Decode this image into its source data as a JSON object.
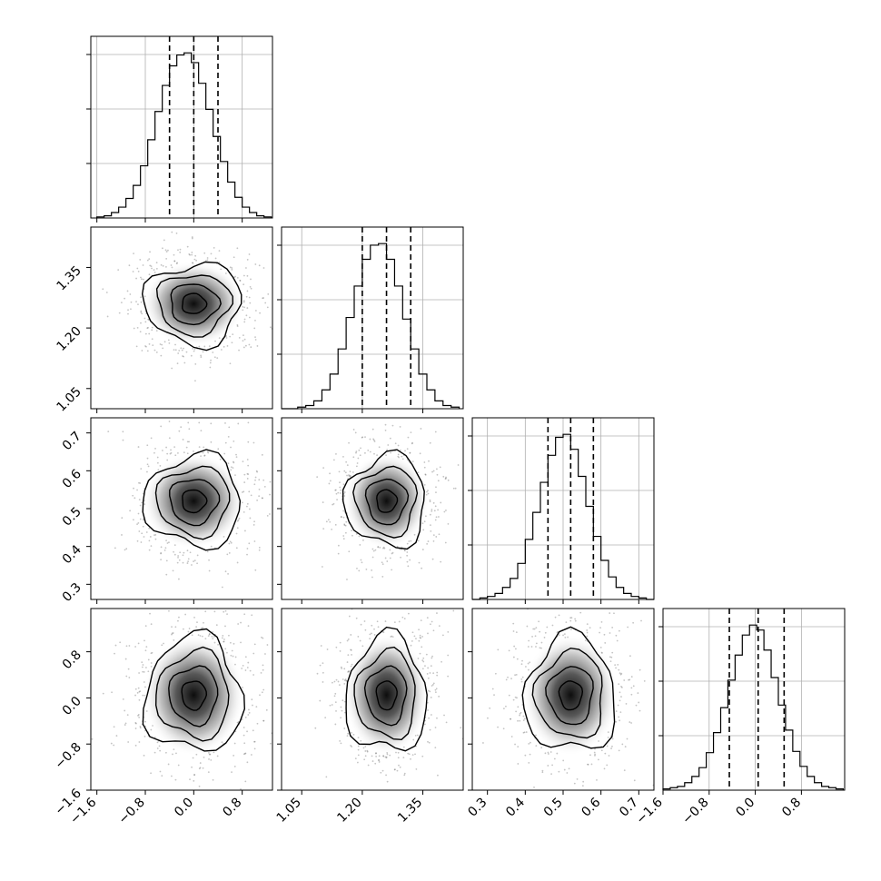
{
  "chart_data": {
    "type": "corner",
    "title": "",
    "grid": true,
    "parameters": [
      {
        "name": "",
        "range": [
          -1.7,
          1.3
        ],
        "ticks": [
          -1.6,
          -0.8,
          0.0,
          0.8
        ],
        "tick_labels": [
          "−1.6",
          "−0.8",
          "0.0",
          "0.8"
        ],
        "hist_edges": [
          -1.6,
          -1.48,
          -1.36,
          -1.24,
          -1.12,
          -1.0,
          -0.88,
          -0.76,
          -0.64,
          -0.52,
          -0.4,
          -0.28,
          -0.16,
          -0.04,
          0.08,
          0.2,
          0.32,
          0.44,
          0.56,
          0.68,
          0.8,
          0.92,
          1.04,
          1.16,
          1.28
        ],
        "hist_counts": [
          1,
          2,
          5,
          10,
          18,
          30,
          48,
          72,
          98,
          122,
          140,
          150,
          152,
          143,
          124,
          100,
          75,
          52,
          33,
          19,
          10,
          5,
          2,
          1
        ],
        "quantiles": [
          -0.4,
          0.0,
          0.4
        ]
      },
      {
        "name": "",
        "range": [
          1.0,
          1.45
        ],
        "ticks": [
          1.05,
          1.2,
          1.35
        ],
        "tick_labels": [
          "1.05",
          "1.20",
          "1.35"
        ],
        "hist_edges": [
          1.0,
          1.02,
          1.04,
          1.06,
          1.08,
          1.1,
          1.12,
          1.14,
          1.16,
          1.18,
          1.2,
          1.22,
          1.24,
          1.26,
          1.28,
          1.3,
          1.32,
          1.34,
          1.36,
          1.38,
          1.4,
          1.42,
          1.44
        ],
        "hist_counts": [
          0,
          0,
          1,
          2,
          5,
          12,
          22,
          38,
          58,
          78,
          95,
          104,
          105,
          95,
          78,
          57,
          38,
          22,
          12,
          5,
          2,
          1
        ],
        "quantiles": [
          1.2,
          1.26,
          1.32
        ]
      },
      {
        "name": "",
        "range": [
          0.26,
          0.74
        ],
        "ticks": [
          0.3,
          0.4,
          0.5,
          0.6,
          0.7
        ],
        "tick_labels": [
          "0.3",
          "0.4",
          "0.5",
          "0.6",
          "0.7"
        ],
        "hist_edges": [
          0.26,
          0.28,
          0.3,
          0.32,
          0.34,
          0.36,
          0.38,
          0.4,
          0.42,
          0.44,
          0.46,
          0.48,
          0.5,
          0.52,
          0.54,
          0.56,
          0.58,
          0.6,
          0.62,
          0.64,
          0.66,
          0.68,
          0.7,
          0.72,
          0.74
        ],
        "hist_counts": [
          0,
          1,
          2,
          4,
          8,
          14,
          24,
          40,
          58,
          78,
          96,
          108,
          110,
          100,
          82,
          62,
          42,
          26,
          15,
          8,
          4,
          2,
          1,
          0
        ],
        "quantiles": [
          0.46,
          0.52,
          0.58
        ]
      },
      {
        "name": "",
        "range": [
          -1.6,
          1.55
        ],
        "ticks": [
          -1.6,
          -0.8,
          0.0,
          0.8
        ],
        "tick_labels": [
          "−1.6",
          "−0.8",
          "0.0",
          "0.8"
        ],
        "hist_edges": [
          -1.6,
          -1.475,
          -1.35,
          -1.225,
          -1.1,
          -0.975,
          -0.85,
          -0.725,
          -0.6,
          -0.475,
          -0.35,
          -0.225,
          -0.1,
          0.025,
          0.15,
          0.275,
          0.4,
          0.525,
          0.65,
          0.775,
          0.9,
          1.025,
          1.15,
          1.275,
          1.4,
          1.525
        ],
        "hist_counts": [
          1,
          2,
          3,
          6,
          11,
          18,
          30,
          46,
          66,
          88,
          108,
          124,
          132,
          128,
          112,
          90,
          68,
          48,
          31,
          19,
          11,
          6,
          3,
          2,
          1
        ],
        "quantiles": [
          -0.45,
          0.05,
          0.5
        ]
      }
    ],
    "pairs": [
      {
        "row": 1,
        "col": 0,
        "center": [
          0.0,
          1.26
        ],
        "sigma": [
          0.4,
          0.05
        ]
      },
      {
        "row": 2,
        "col": 0,
        "center": [
          0.0,
          0.52
        ],
        "sigma": [
          0.4,
          0.06
        ]
      },
      {
        "row": 2,
        "col": 1,
        "center": [
          1.26,
          0.52
        ],
        "sigma": [
          0.05,
          0.06
        ]
      },
      {
        "row": 3,
        "col": 0,
        "center": [
          0.0,
          0.05
        ],
        "sigma": [
          0.4,
          0.5
        ]
      },
      {
        "row": 3,
        "col": 1,
        "center": [
          1.26,
          0.05
        ],
        "sigma": [
          0.05,
          0.5
        ]
      },
      {
        "row": 3,
        "col": 2,
        "center": [
          0.52,
          0.05
        ],
        "sigma": [
          0.06,
          0.5
        ]
      }
    ],
    "contour_levels_sigma": [
      0.5,
      1.0,
      1.5,
      2.0
    ],
    "colors": {
      "line": "#000000",
      "grid": "#b0b0b0",
      "scatter": "#555555",
      "density_dark": "#000000"
    }
  }
}
